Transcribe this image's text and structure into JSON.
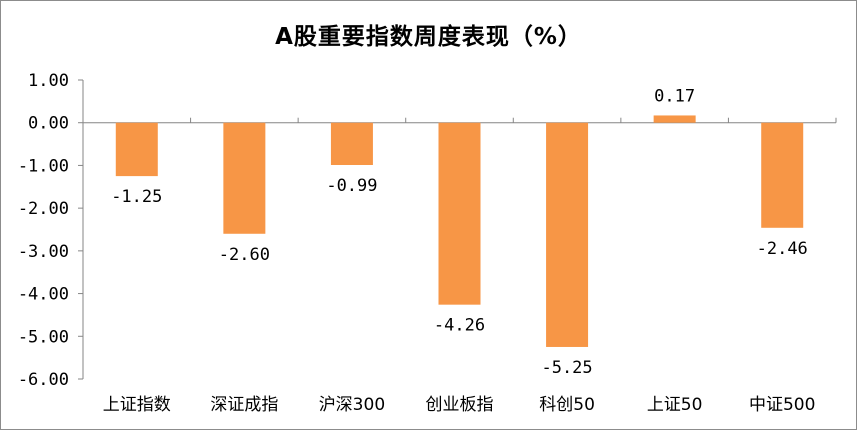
{
  "chart_data": {
    "type": "bar",
    "title": "A股重要指数周度表现（%）",
    "categories": [
      "上证指数",
      "深证成指",
      "沪深300",
      "创业板指",
      "科创50",
      "上证50",
      "中证500"
    ],
    "values": [
      -1.25,
      -2.6,
      -0.99,
      -4.26,
      -5.25,
      0.17,
      -2.46
    ],
    "value_labels": [
      "-1.25",
      "-2.60",
      "-0.99",
      "-4.26",
      "-5.25",
      "0.17",
      "-2.46"
    ],
    "ylim": [
      -6,
      1
    ],
    "yticks": [
      1,
      0,
      -1,
      -2,
      -3,
      -4,
      -5,
      -6
    ],
    "ytick_labels": [
      "1.00",
      "0.00",
      "-1.00",
      "-2.00",
      "-3.00",
      "-4.00",
      "-5.00",
      "-6.00"
    ],
    "xlabel": "",
    "ylabel": "",
    "grid": false,
    "legend": "none",
    "bar_color": "#F79646",
    "axis_color": "#868686"
  }
}
